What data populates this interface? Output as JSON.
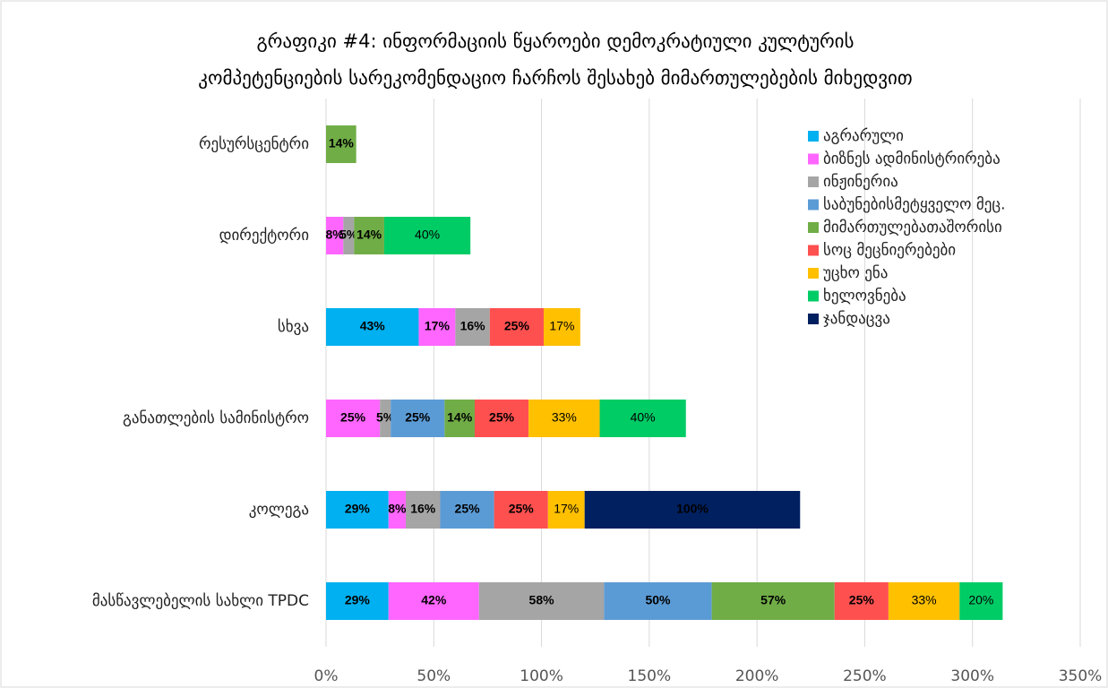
{
  "chart_data": {
    "type": "bar",
    "orientation": "horizontal",
    "stacked": true,
    "title": [
      "გრაფიკი #4:  ინფორმაციის წყაროები დემოკრატიული კულტურის",
      "კომპეტენციების სარეკომენდაციო ჩარჩოს შესახებ მიმართულებების მიხედვით"
    ],
    "categories": [
      "რესურსცენტრი",
      "დირექტორი",
      "სხვა",
      "განათლების სამინისტრო",
      "კოლეგა",
      "მასწავლებელის სახლი TPDC"
    ],
    "series": [
      {
        "name": "აგრარული",
        "color": "#00b0f0",
        "values": [
          null,
          null,
          43,
          null,
          29,
          29
        ],
        "value_labels": [
          null,
          null,
          "43%",
          null,
          "29%",
          "29%"
        ]
      },
      {
        "name": "ბიზნეს ადმინისტრირება",
        "color": "#ff66ff",
        "values": [
          null,
          8,
          17,
          25,
          8,
          42
        ],
        "value_labels": [
          null,
          "8%",
          "17%",
          "25%",
          "8%",
          "42%"
        ]
      },
      {
        "name": "ინჟინერია",
        "color": "#a5a5a5",
        "values": [
          null,
          5,
          16,
          5,
          16,
          58
        ],
        "value_labels": [
          null,
          "5%",
          "16%",
          "5%",
          "16%",
          "58%"
        ]
      },
      {
        "name": "საბუნებისმეტყველო მეც.",
        "color": "#5b9bd5",
        "values": [
          null,
          null,
          null,
          25,
          25,
          50
        ],
        "value_labels": [
          null,
          null,
          null,
          "25%",
          "25%",
          "50%"
        ]
      },
      {
        "name": "მიმართულებათაშორისი",
        "color": "#70ad47",
        "values": [
          14,
          14,
          null,
          14,
          null,
          57
        ],
        "value_labels": [
          "14%",
          "14%",
          null,
          "14%",
          null,
          "57%"
        ]
      },
      {
        "name": "სოც მეცნიერებები",
        "color": "#ff5050",
        "values": [
          null,
          null,
          25,
          25,
          25,
          25
        ],
        "value_labels": [
          null,
          null,
          "25%",
          "25%",
          "25%",
          "25%"
        ]
      },
      {
        "name": "უცხო ენა",
        "color": "#ffc000",
        "values": [
          null,
          null,
          17,
          33,
          17,
          33
        ],
        "value_labels": [
          null,
          null,
          "17%",
          "33%",
          "17%",
          "33%"
        ]
      },
      {
        "name": "ხელოვნება",
        "color": "#00cc66",
        "values": [
          null,
          40,
          null,
          40,
          null,
          20
        ],
        "value_labels": [
          null,
          "40%",
          null,
          "40%",
          null,
          "20%"
        ]
      },
      {
        "name": "ჯანდაცვა",
        "color": "#002060",
        "values": [
          null,
          null,
          null,
          null,
          100,
          null
        ],
        "value_labels": [
          null,
          null,
          null,
          null,
          "100%",
          null
        ]
      }
    ],
    "xlim": [
      0,
      350
    ],
    "xticks": [
      {
        "value": 0,
        "label": "0%"
      },
      {
        "value": 50,
        "label": "50%"
      },
      {
        "value": 100,
        "label": "100%"
      },
      {
        "value": 150,
        "label": "150%"
      },
      {
        "value": 200,
        "label": "200%"
      },
      {
        "value": 250,
        "label": "250%"
      },
      {
        "value": 300,
        "label": "300%"
      },
      {
        "value": 350,
        "label": "350%"
      }
    ],
    "grid": true,
    "legend": "upper right"
  }
}
